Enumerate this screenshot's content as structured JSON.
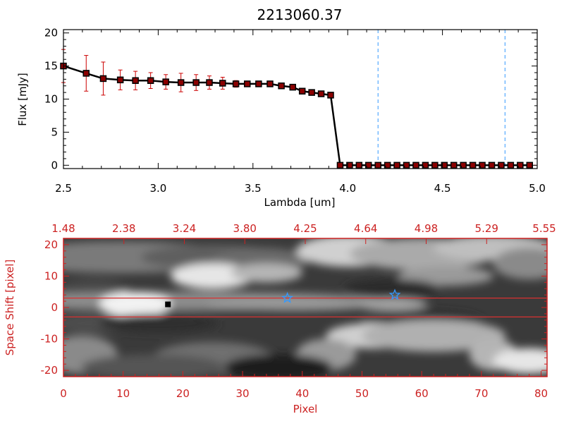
{
  "chart_data": [
    {
      "type": "line",
      "title": "2213060.37",
      "xlabel": "Lambda [um]",
      "ylabel": "Flux [mJy]",
      "xlim": [
        2.5,
        5.0
      ],
      "ylim": [
        -0.5,
        20.5
      ],
      "x_ticks": [
        "2.5",
        "3.0",
        "3.5",
        "4.0",
        "4.5",
        "5.0"
      ],
      "y_ticks": [
        "0",
        "5",
        "10",
        "15",
        "20"
      ],
      "series": [
        {
          "x": [
            2.5,
            2.62,
            2.71,
            2.8,
            2.88,
            2.96,
            3.04,
            3.12,
            3.2,
            3.27,
            3.34,
            3.41,
            3.47,
            3.53,
            3.59,
            3.65,
            3.71,
            3.76,
            3.81,
            3.86,
            3.91,
            3.96,
            4.01,
            4.06,
            4.11,
            4.16,
            4.21,
            4.26,
            4.31,
            4.36,
            4.41,
            4.46,
            4.51,
            4.56,
            4.61,
            4.66,
            4.71,
            4.76,
            4.81,
            4.86,
            4.91,
            4.96
          ],
          "y": [
            15.0,
            13.9,
            13.1,
            12.9,
            12.8,
            12.8,
            12.6,
            12.5,
            12.5,
            12.5,
            12.4,
            12.3,
            12.3,
            12.3,
            12.3,
            12.0,
            11.8,
            11.2,
            11.0,
            10.8,
            10.6,
            0,
            0,
            0,
            0,
            0,
            0,
            0,
            0,
            0,
            0,
            0,
            0,
            0,
            0,
            0,
            0,
            0,
            0,
            0,
            0,
            0
          ],
          "yerr": [
            2.5,
            2.7,
            2.5,
            1.5,
            1.4,
            1.2,
            1.1,
            1.4,
            1.2,
            1.0,
            0.9,
            0.5,
            0.4,
            0.4,
            0.4,
            0.4,
            0.3,
            0.3,
            0.3,
            0.3,
            0.3,
            0,
            0,
            0,
            0,
            0,
            0,
            0,
            0,
            0,
            0,
            0,
            0,
            0,
            0,
            0,
            0,
            0,
            0,
            0,
            0,
            0
          ],
          "line_color": "#000000",
          "marker_color": "#8b0000",
          "errorbar_color": "#cc0000"
        }
      ],
      "vlines": [
        4.16,
        4.83
      ],
      "vline_color": "#3399ff"
    },
    {
      "type": "heatmap",
      "xlabel": "Pixel",
      "ylabel": "Space Shift [pixel]",
      "xlim": [
        0,
        81
      ],
      "ylim": [
        -22,
        22
      ],
      "x_ticks": [
        "0",
        "10",
        "20",
        "30",
        "40",
        "50",
        "60",
        "70",
        "80"
      ],
      "y_ticks": [
        "-20",
        "-10",
        "0",
        "10",
        "20"
      ],
      "top_axis_ticks": [
        "1.48",
        "2.38",
        "3.24",
        "3.80",
        "4.25",
        "4.64",
        "4.98",
        "5.29",
        "5.55"
      ],
      "hlines": [
        3,
        -3
      ],
      "star_markers": [
        {
          "x": 37.5,
          "y": 3
        },
        {
          "x": 55.5,
          "y": 4
        }
      ],
      "square_marker": {
        "x": 17.5,
        "y": 1
      },
      "axis_color": "#cc2222",
      "star_color": "#3399ff"
    }
  ]
}
